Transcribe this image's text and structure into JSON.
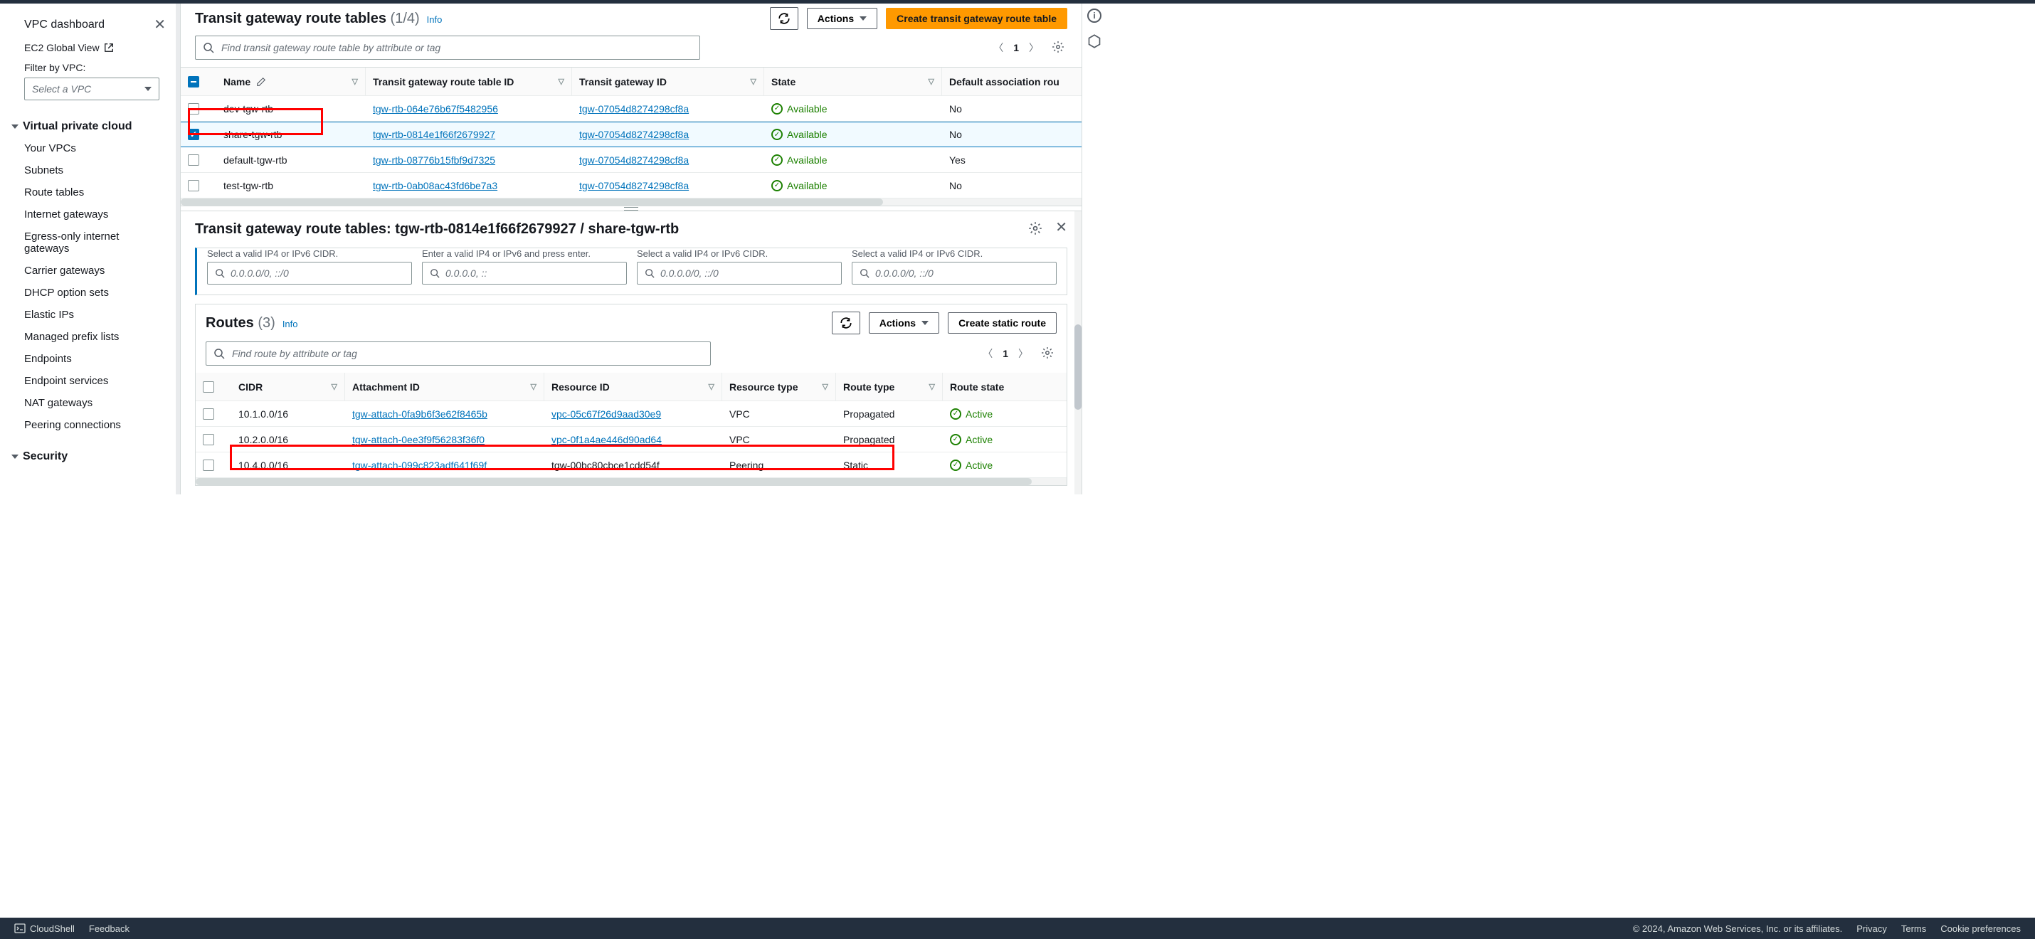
{
  "colors": {
    "accent": "#0073bb",
    "primary_btn": "#ff9900",
    "ok": "#1d8102",
    "highlight": "#ff0000",
    "footer_bg": "#232f3e"
  },
  "sidebar": {
    "dashboard": "VPC dashboard",
    "ec2_global": "EC2 Global View",
    "filter_label": "Filter by VPC:",
    "vpc_select_placeholder": "Select a VPC",
    "section1_title": "Virtual private cloud",
    "items1": [
      "Your VPCs",
      "Subnets",
      "Route tables",
      "Internet gateways",
      "Egress-only internet gateways",
      "Carrier gateways",
      "DHCP option sets",
      "Elastic IPs",
      "Managed prefix lists",
      "Endpoints",
      "Endpoint services",
      "NAT gateways",
      "Peering connections"
    ],
    "section2_title": "Security"
  },
  "header": {
    "title": "Transit gateway route tables",
    "count": "(1/4)",
    "info": "Info",
    "actions": "Actions",
    "create_btn": "Create transit gateway route table",
    "search_placeholder": "Find transit gateway route table by attribute or tag",
    "page": "1"
  },
  "columns": [
    "Name",
    "Transit gateway route table ID",
    "Transit gateway ID",
    "State",
    "Default association rou"
  ],
  "rows": [
    {
      "checked": false,
      "name": "dev-tgw-rtb",
      "rtb": "tgw-rtb-064e76b67f5482956",
      "tgw": "tgw-07054d8274298cf8a",
      "state": "Available",
      "assoc": "No"
    },
    {
      "checked": true,
      "name": "share-tgw-rtb",
      "rtb": "tgw-rtb-0814e1f66f2679927",
      "tgw": "tgw-07054d8274298cf8a",
      "state": "Available",
      "assoc": "No"
    },
    {
      "checked": false,
      "name": "default-tgw-rtb",
      "rtb": "tgw-rtb-08776b15fbf9d7325",
      "tgw": "tgw-07054d8274298cf8a",
      "state": "Available",
      "assoc": "Yes"
    },
    {
      "checked": false,
      "name": "test-tgw-rtb",
      "rtb": "tgw-rtb-0ab08ac43fd6be7a3",
      "tgw": "tgw-07054d8274298cf8a",
      "state": "Available",
      "assoc": "No"
    }
  ],
  "detail": {
    "title": "Transit gateway route tables: tgw-rtb-0814e1f66f2679927 / share-tgw-rtb",
    "filters": [
      {
        "desc": "Select a valid IP4 or IPv6 CIDR.",
        "ph": "0.0.0.0/0, ::/0"
      },
      {
        "desc": "Enter a valid IP4 or IPv6 and press enter.",
        "ph": "0.0.0.0, ::"
      },
      {
        "desc": "Select a valid IP4 or IPv6 CIDR.",
        "ph": "0.0.0.0/0, ::/0"
      },
      {
        "desc": "Select a valid IP4 or IPv6 CIDR.",
        "ph": "0.0.0.0/0, ::/0"
      }
    ],
    "routes_title": "Routes",
    "routes_count": "(3)",
    "routes_info": "Info",
    "routes_actions": "Actions",
    "routes_create": "Create static route",
    "routes_search_placeholder": "Find route by attribute or tag",
    "routes_page": "1",
    "route_columns": [
      "CIDR",
      "Attachment ID",
      "Resource ID",
      "Resource type",
      "Route type",
      "Route state"
    ],
    "routes": [
      {
        "cidr": "10.1.0.0/16",
        "attach": "tgw-attach-0fa9b6f3e62f8465b",
        "res": "vpc-05c67f26d9aad30e9",
        "res_link": true,
        "rtype": "VPC",
        "route": "Propagated",
        "state": "Active"
      },
      {
        "cidr": "10.2.0.0/16",
        "attach": "tgw-attach-0ee3f9f56283f36f0",
        "res": "vpc-0f1a4ae446d90ad64",
        "res_link": true,
        "rtype": "VPC",
        "route": "Propagated",
        "state": "Active"
      },
      {
        "cidr": "10.4.0.0/16",
        "attach": "tgw-attach-099c823adf641f69f",
        "res": "tgw-00bc80cbce1cdd54f",
        "res_link": false,
        "rtype": "Peering",
        "route": "Static",
        "state": "Active"
      }
    ]
  },
  "footer": {
    "cloudshell": "CloudShell",
    "feedback": "Feedback",
    "copyright": "© 2024, Amazon Web Services, Inc. or its affiliates.",
    "links": [
      "Privacy",
      "Terms",
      "Cookie preferences"
    ]
  }
}
